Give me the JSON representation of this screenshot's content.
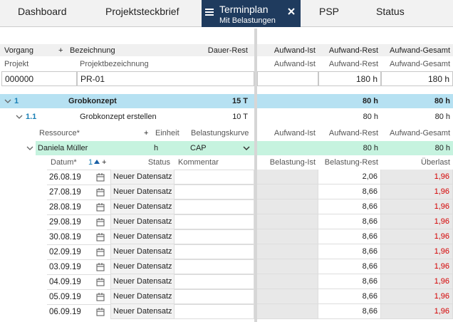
{
  "tabs": [
    {
      "label": "Dashboard"
    },
    {
      "label": "Projektsteckbrief"
    },
    {
      "label": "Terminplan",
      "subtitle": "Mit Belastungen"
    },
    {
      "label": "PSP"
    },
    {
      "label": "Status"
    }
  ],
  "task_header": {
    "vorgang": "Vorgang",
    "add": "+",
    "bezeichnung": "Bezeichnung",
    "dauer_rest": "Dauer-Rest",
    "aufwand_ist": "Aufwand-Ist",
    "aufwand_rest": "Aufwand-Rest",
    "aufwand_gesamt": "Aufwand-Gesamt"
  },
  "project": {
    "header": {
      "projekt": "Projekt",
      "projektbezeichnung": "Projektbezeichnung",
      "aufwand_ist": "Aufwand-Ist",
      "aufwand_rest": "Aufwand-Rest",
      "aufwand_gesamt": "Aufwand-Gesamt"
    },
    "projekt": "000000",
    "projektbezeichnung": "PR-01",
    "aufwand_rest": "180 h",
    "aufwand_gesamt": "180 h"
  },
  "tasks": [
    {
      "nr": "1",
      "bezeichnung": "Grobkonzept",
      "dauer_rest": "15 T",
      "aufwand_rest": "80 h",
      "aufwand_gesamt": "80 h"
    },
    {
      "nr": "1.1",
      "bezeichnung": "Grobkonzept erstellen",
      "dauer_rest": "10 T",
      "aufwand_rest": "80 h",
      "aufwand_gesamt": "80 h"
    }
  ],
  "resource_header": {
    "ressource": "Ressource*",
    "add": "+",
    "einheit": "Einheit",
    "belastungskurve": "Belastungskurve",
    "aufwand_ist": "Aufwand-Ist",
    "aufwand_rest": "Aufwand-Rest",
    "aufwand_gesamt": "Aufwand-Gesamt"
  },
  "resource": {
    "name": "Daniela Müller",
    "einheit": "h",
    "belastungskurve": "CAP",
    "aufwand_rest": "80 h",
    "aufwand_gesamt": "80 h"
  },
  "load_header": {
    "datum": "Datum*",
    "sort": "1",
    "add": "+",
    "status": "Status",
    "kommentar": "Kommentar",
    "belastung_ist": "Belastung-Ist",
    "belastung_rest": "Belastung-Rest",
    "ueberlast": "Überlast"
  },
  "loads": [
    {
      "datum": "26.08.19",
      "status": "Neuer Datensatz",
      "belastung_rest": "2,06",
      "ueberlast": "1,96"
    },
    {
      "datum": "27.08.19",
      "status": "Neuer Datensatz",
      "belastung_rest": "8,66",
      "ueberlast": "1,96"
    },
    {
      "datum": "28.08.19",
      "status": "Neuer Datensatz",
      "belastung_rest": "8,66",
      "ueberlast": "1,96"
    },
    {
      "datum": "29.08.19",
      "status": "Neuer Datensatz",
      "belastung_rest": "8,66",
      "ueberlast": "1,96"
    },
    {
      "datum": "30.08.19",
      "status": "Neuer Datensatz",
      "belastung_rest": "8,66",
      "ueberlast": "1,96"
    },
    {
      "datum": "02.09.19",
      "status": "Neuer Datensatz",
      "belastung_rest": "8,66",
      "ueberlast": "1,96"
    },
    {
      "datum": "03.09.19",
      "status": "Neuer Datensatz",
      "belastung_rest": "8,66",
      "ueberlast": "1,96"
    },
    {
      "datum": "04.09.19",
      "status": "Neuer Datensatz",
      "belastung_rest": "8,66",
      "ueberlast": "1,96"
    },
    {
      "datum": "05.09.19",
      "status": "Neuer Datensatz",
      "belastung_rest": "8,66",
      "ueberlast": "1,96"
    },
    {
      "datum": "06.09.19",
      "status": "Neuer Datensatz",
      "belastung_rest": "8,66",
      "ueberlast": "1,96"
    }
  ]
}
